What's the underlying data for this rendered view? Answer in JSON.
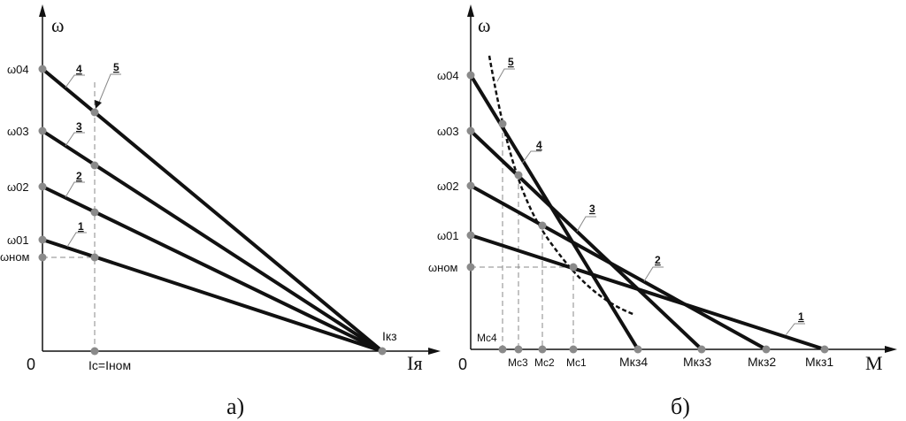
{
  "panel_a": {
    "caption": "а)",
    "y_axis_symbol": "ω",
    "x_axis_symbol": "Iя",
    "origin": "0",
    "y_ticks": [
      "ω04",
      "ω03",
      "ω02",
      "ω01",
      "ωном"
    ],
    "x_ticks": [
      "Iс=Iном",
      "Iкз"
    ],
    "line_numbers": [
      "1",
      "2",
      "3",
      "4",
      "5"
    ]
  },
  "panel_b": {
    "caption": "б)",
    "y_axis_symbol": "ω",
    "x_axis_symbol": "M",
    "origin": "0",
    "y_ticks": [
      "ω04",
      "ω03",
      "ω02",
      "ω01",
      "ωном"
    ],
    "mc_ticks": [
      "Mс4",
      "Mс3",
      "Mс2",
      "Mс1"
    ],
    "mkz_ticks": [
      "Mкз4",
      "Mкз3",
      "Mкз2",
      "Mкз1"
    ],
    "line_numbers": [
      "1",
      "2",
      "3",
      "4",
      "5"
    ]
  },
  "colors": {
    "line": "#111111",
    "point": "#8a8a8a",
    "guide": "#888888"
  }
}
